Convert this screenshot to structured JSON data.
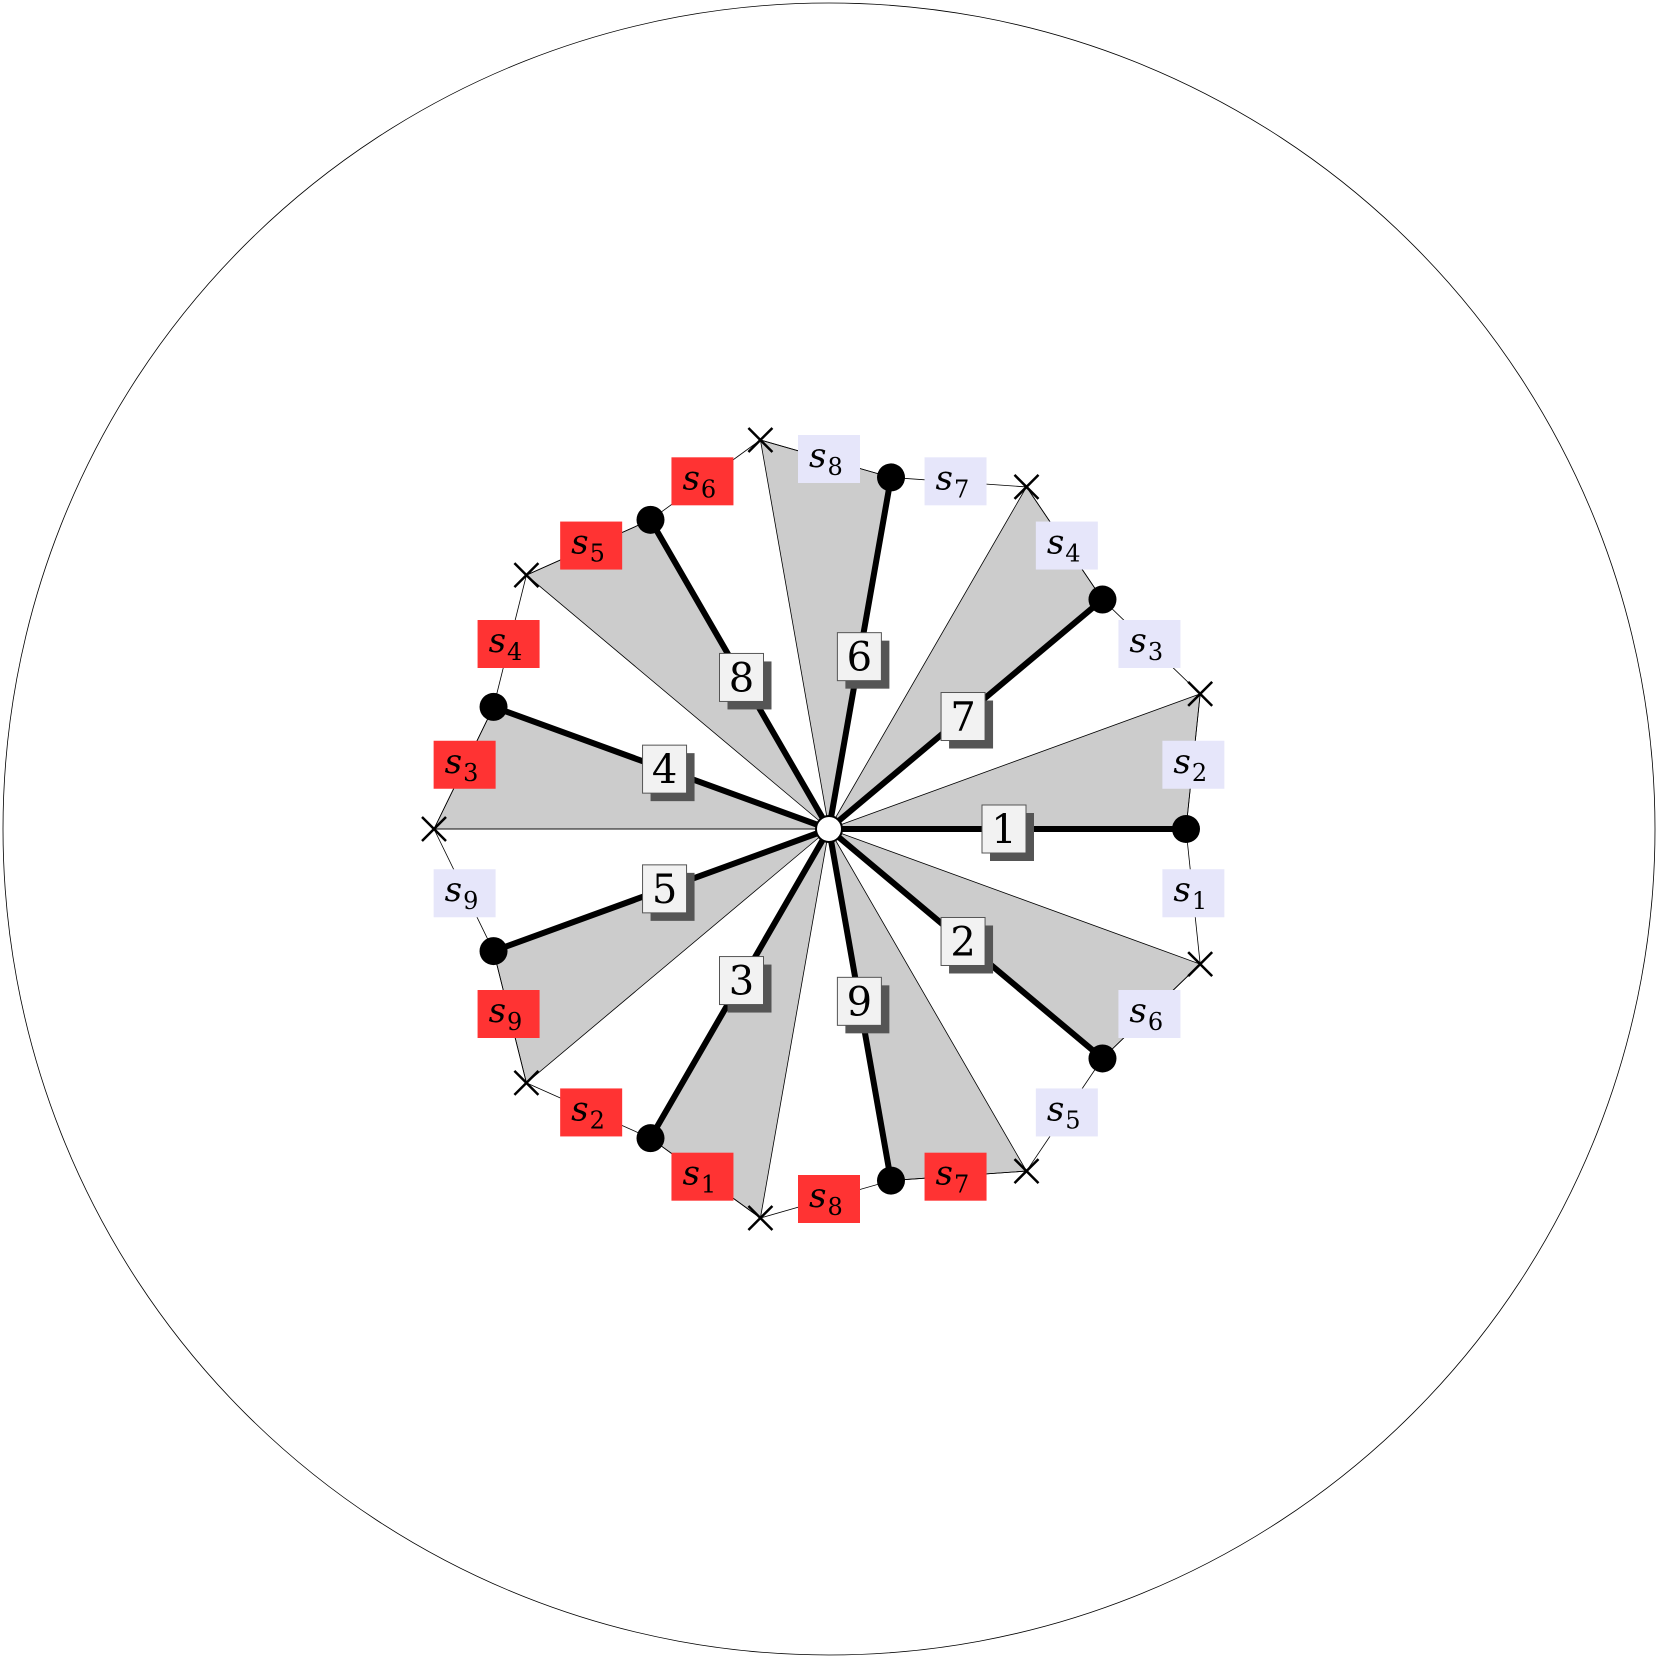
{
  "colors": {
    "sector_fill": "#cccccc",
    "red_label": "#ff3333",
    "blue_label": "#e6e6fa",
    "line": "#000000",
    "box_face": "#f2f2f2",
    "box_shadow": "#555555"
  },
  "spokes": [
    {
      "number": "1",
      "angle_deg": 0
    },
    {
      "number": "2",
      "angle_deg": -40
    },
    {
      "number": "3",
      "angle_deg": -120
    },
    {
      "number": "4",
      "angle_deg": 160
    },
    {
      "number": "5",
      "angle_deg": -160
    },
    {
      "number": "6",
      "angle_deg": 80
    },
    {
      "number": "7",
      "angle_deg": 40
    },
    {
      "number": "8",
      "angle_deg": 120
    },
    {
      "number": "9",
      "angle_deg": -80
    }
  ],
  "cross_angles_deg": [
    20,
    60,
    100,
    140,
    180,
    220,
    260,
    300,
    340
  ],
  "shaded_sectors": [
    {
      "from_deg": 0,
      "to_deg": 20
    },
    {
      "from_deg": 40,
      "to_deg": 60
    },
    {
      "from_deg": 80,
      "to_deg": 100
    },
    {
      "from_deg": 120,
      "to_deg": 140
    },
    {
      "from_deg": 160,
      "to_deg": 180
    },
    {
      "from_deg": 200,
      "to_deg": 220
    },
    {
      "from_deg": 240,
      "to_deg": 260
    },
    {
      "from_deg": 280,
      "to_deg": 300
    },
    {
      "from_deg": 320,
      "to_deg": 340
    }
  ],
  "segment_labels": [
    {
      "letter": "s",
      "sub": "1",
      "color": "blue",
      "angle_deg": -10
    },
    {
      "letter": "s",
      "sub": "2",
      "color": "blue",
      "angle_deg": 10
    },
    {
      "letter": "s",
      "sub": "3",
      "color": "blue",
      "angle_deg": 30
    },
    {
      "letter": "s",
      "sub": "4",
      "color": "blue",
      "angle_deg": 50
    },
    {
      "letter": "s",
      "sub": "7",
      "color": "blue",
      "angle_deg": 70
    },
    {
      "letter": "s",
      "sub": "8",
      "color": "blue",
      "angle_deg": 90
    },
    {
      "letter": "s",
      "sub": "6",
      "color": "red",
      "angle_deg": 110
    },
    {
      "letter": "s",
      "sub": "5",
      "color": "red",
      "angle_deg": 130
    },
    {
      "letter": "s",
      "sub": "4",
      "color": "red",
      "angle_deg": 150
    },
    {
      "letter": "s",
      "sub": "3",
      "color": "red",
      "angle_deg": 170
    },
    {
      "letter": "s",
      "sub": "9",
      "color": "blue",
      "angle_deg": 190
    },
    {
      "letter": "s",
      "sub": "9",
      "color": "red",
      "angle_deg": 210
    },
    {
      "letter": "s",
      "sub": "2",
      "color": "red",
      "angle_deg": 230
    },
    {
      "letter": "s",
      "sub": "1",
      "color": "red",
      "angle_deg": 250
    },
    {
      "letter": "s",
      "sub": "8",
      "color": "red",
      "angle_deg": 270
    },
    {
      "letter": "s",
      "sub": "7",
      "color": "red",
      "angle_deg": 290
    },
    {
      "letter": "s",
      "sub": "5",
      "color": "blue",
      "angle_deg": 310
    },
    {
      "letter": "s",
      "sub": "6",
      "color": "blue",
      "angle_deg": 330
    }
  ]
}
